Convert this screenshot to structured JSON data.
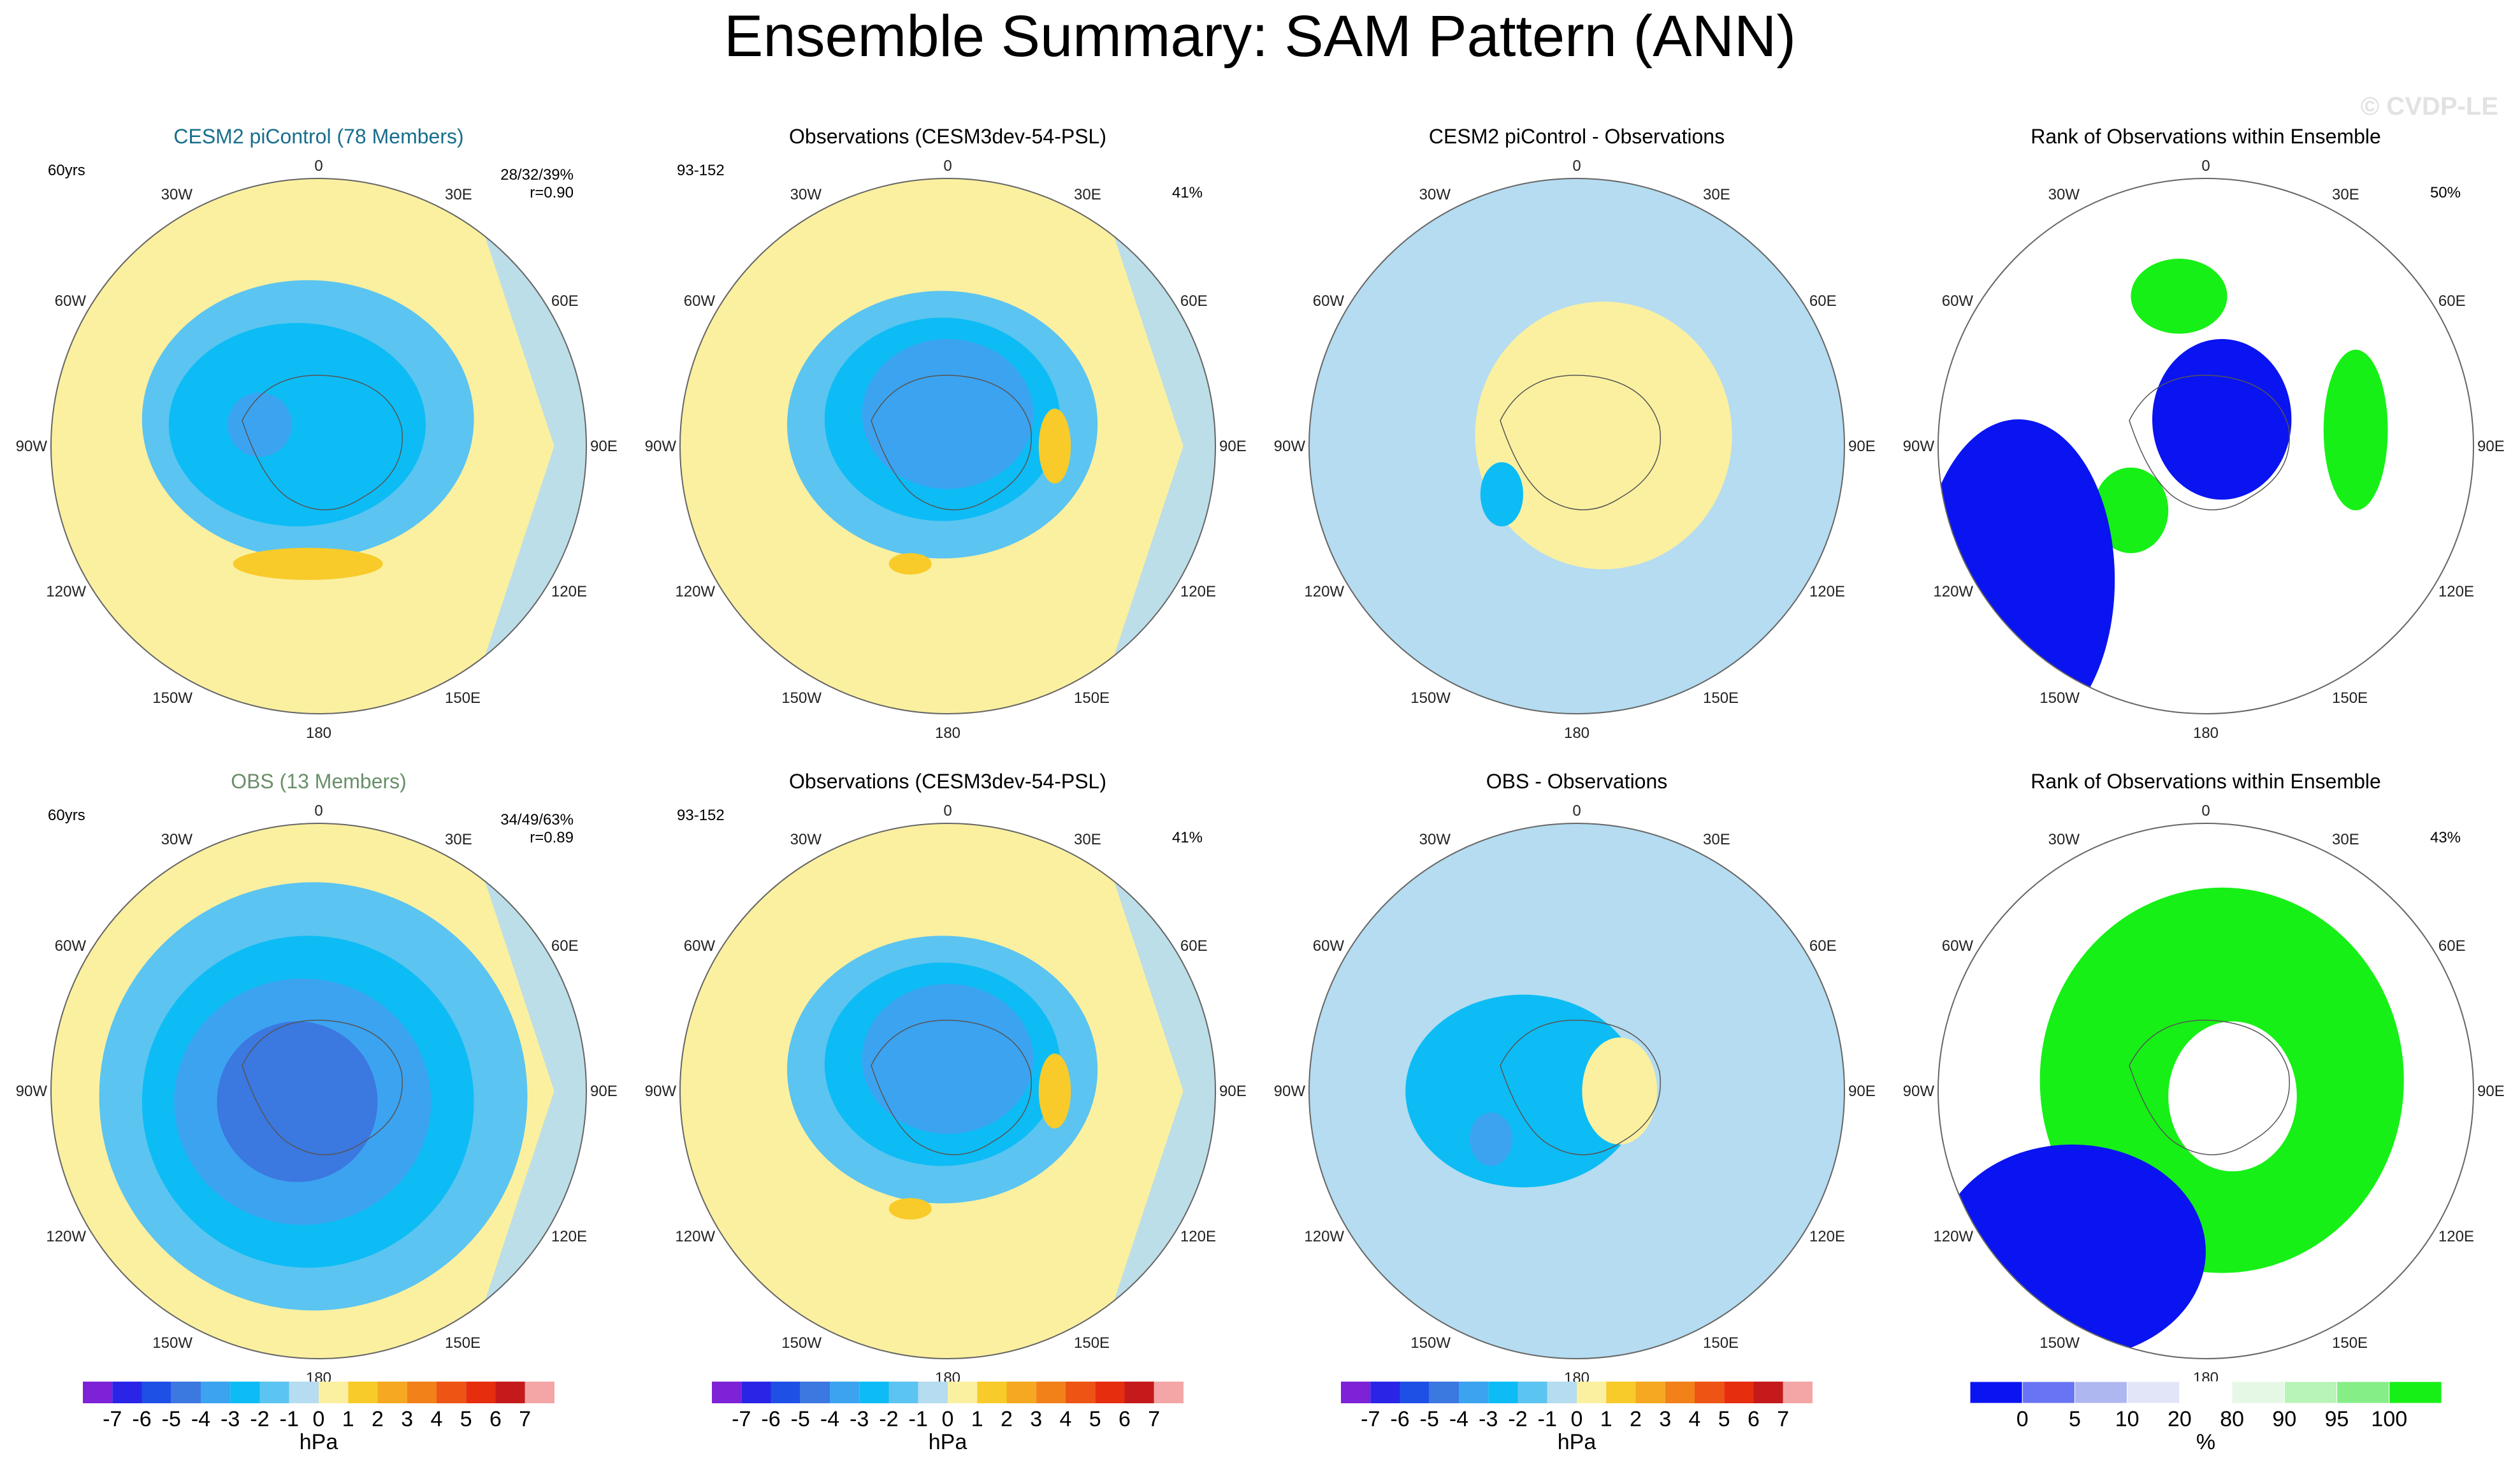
{
  "figure": {
    "title": "Ensemble Summary: SAM Pattern (ANN)",
    "watermark": "© CVDP-LE",
    "colors": {
      "neg": [
        "#7e22d8",
        "#2a25e6",
        "#1f50e6",
        "#3b78e0",
        "#3ca3f0",
        "#0dbcf5",
        "#5cc4f0",
        "#b5dcf0"
      ],
      "pos": [
        "#fbf0a0",
        "#f8cb2a",
        "#f5a821",
        "#f2811a",
        "#ee5414",
        "#e62e0e",
        "#c51a1c",
        "#f4a6a6"
      ],
      "rank": [
        "#0a14f0",
        "#6874f4",
        "#afb7f0",
        "#e2e5f8",
        "#ffffff",
        "#e5f8e5",
        "#b8f3b8",
        "#86ee86",
        "#16f016"
      ],
      "cesm_label": "#186e8c",
      "obs_label": "#6a8f6a"
    }
  },
  "chart_data": [
    {
      "type": "polar-contour-map",
      "title": "CESM2 piControl (78 Members)",
      "title_color": "#186e8c",
      "left_text": "60yrs",
      "right_text": "28/32/39%",
      "right_text2": "r=0.90",
      "lon_labels": [
        "0",
        "30E",
        "60E",
        "90E",
        "120E",
        "150E",
        "180",
        "150W",
        "120W",
        "90W",
        "60W",
        "30W"
      ],
      "regions": [
        {
          "level": -1,
          "center": [
            -2,
            5
          ],
          "extent": [
            31,
            26
          ],
          "note": "polar low ring"
        },
        {
          "level": -2,
          "center": [
            -4,
            4
          ],
          "extent": [
            24,
            19
          ]
        },
        {
          "level": -3,
          "center": [
            -11,
            4
          ],
          "extent": [
            6,
            6
          ]
        },
        {
          "level": 1,
          "center": [
            -2,
            -22
          ],
          "extent": [
            14,
            3
          ]
        }
      ]
    },
    {
      "type": "polar-contour-map",
      "title": "Observations (CESM3dev-54-PSL)",
      "left_text": "93-152",
      "right_text": "41%",
      "lon_labels": [
        "0",
        "30E",
        "60E",
        "90E",
        "120E",
        "150E",
        "180",
        "150W",
        "120W",
        "90W",
        "60W",
        "30W"
      ],
      "regions": [
        {
          "level": -1,
          "center": [
            -1,
            4
          ],
          "extent": [
            29,
            25
          ]
        },
        {
          "level": -2,
          "center": [
            -1,
            5
          ],
          "extent": [
            22,
            19
          ]
        },
        {
          "level": -3,
          "center": [
            0,
            6
          ],
          "extent": [
            16,
            14
          ]
        },
        {
          "level": 1,
          "center": [
            20,
            0
          ],
          "extent": [
            3,
            7
          ]
        },
        {
          "level": 1,
          "center": [
            -7,
            -22
          ],
          "extent": [
            4,
            2
          ]
        }
      ]
    },
    {
      "type": "polar-contour-map",
      "title": "CESM2 piControl - Observations",
      "left_text": "",
      "right_text": "",
      "lon_labels": [
        "0",
        "30E",
        "60E",
        "90E",
        "120E",
        "150E",
        "180",
        "150W",
        "120W",
        "90W",
        "60W",
        "30W"
      ],
      "regions": [
        {
          "level": -1,
          "center": [
            0,
            0
          ],
          "extent": [
            100,
            100
          ],
          "note": "broad negative"
        },
        {
          "level": 0,
          "center": [
            5,
            2
          ],
          "extent": [
            24,
            25
          ]
        },
        {
          "level": -2,
          "center": [
            -14,
            -9
          ],
          "extent": [
            4,
            6
          ]
        }
      ]
    },
    {
      "type": "polar-rank-map",
      "title": "Rank of Observations within Ensemble",
      "left_text": "",
      "right_text": "50%",
      "lon_labels": [
        "0",
        "30E",
        "60E",
        "90E",
        "120E",
        "150E",
        "180",
        "150W",
        "120W",
        "90W",
        "60W",
        "30W"
      ],
      "regions": [
        {
          "rank": 100,
          "center": [
            -5,
            28
          ],
          "extent": [
            9,
            7
          ]
        },
        {
          "rank": 100,
          "center": [
            28,
            3
          ],
          "extent": [
            6,
            15
          ]
        },
        {
          "rank": 100,
          "center": [
            -14,
            -12
          ],
          "extent": [
            7,
            8
          ]
        },
        {
          "rank": 0,
          "center": [
            3,
            5
          ],
          "extent": [
            13,
            15
          ]
        },
        {
          "rank": 0,
          "center": [
            -35,
            -25
          ],
          "extent": [
            18,
            30
          ]
        }
      ]
    },
    {
      "type": "polar-contour-map",
      "title": "OBS (13 Members)",
      "title_color": "#6a8f6a",
      "left_text": "60yrs",
      "right_text": "34/49/63%",
      "right_text2": "r=0.89",
      "lon_labels": [
        "0",
        "30E",
        "60E",
        "90E",
        "120E",
        "150E",
        "180",
        "150W",
        "120W",
        "90W",
        "60W",
        "30W"
      ],
      "regions": [
        {
          "level": -1,
          "center": [
            -1,
            -1
          ],
          "extent": [
            40,
            40
          ]
        },
        {
          "level": -2,
          "center": [
            -2,
            -2
          ],
          "extent": [
            31,
            31
          ]
        },
        {
          "level": -3,
          "center": [
            -3,
            -2
          ],
          "extent": [
            24,
            23
          ]
        },
        {
          "level": -4,
          "center": [
            -4,
            -2
          ],
          "extent": [
            15,
            15
          ]
        }
      ]
    },
    {
      "type": "polar-contour-map",
      "title": "Observations (CESM3dev-54-PSL)",
      "left_text": "93-152",
      "right_text": "41%",
      "lon_labels": [
        "0",
        "30E",
        "60E",
        "90E",
        "120E",
        "150E",
        "180",
        "150W",
        "120W",
        "90W",
        "60W",
        "30W"
      ],
      "regions": [
        {
          "level": -1,
          "center": [
            -1,
            4
          ],
          "extent": [
            29,
            25
          ]
        },
        {
          "level": -2,
          "center": [
            -1,
            5
          ],
          "extent": [
            22,
            19
          ]
        },
        {
          "level": -3,
          "center": [
            0,
            6
          ],
          "extent": [
            16,
            14
          ]
        },
        {
          "level": 1,
          "center": [
            20,
            0
          ],
          "extent": [
            3,
            7
          ]
        },
        {
          "level": 1,
          "center": [
            -7,
            -22
          ],
          "extent": [
            4,
            2
          ]
        }
      ]
    },
    {
      "type": "polar-contour-map",
      "title": "OBS - Observations",
      "left_text": "",
      "right_text": "",
      "lon_labels": [
        "0",
        "30E",
        "60E",
        "90E",
        "120E",
        "150E",
        "180",
        "150W",
        "120W",
        "90W",
        "60W",
        "30W"
      ],
      "regions": [
        {
          "level": -1,
          "center": [
            0,
            0
          ],
          "extent": [
            100,
            100
          ],
          "note": "broad negative"
        },
        {
          "level": -2,
          "center": [
            -10,
            0
          ],
          "extent": [
            22,
            18
          ]
        },
        {
          "level": -3,
          "center": [
            -16,
            -9
          ],
          "extent": [
            4,
            5
          ]
        },
        {
          "level": 0,
          "center": [
            8,
            0
          ],
          "extent": [
            7,
            10
          ]
        }
      ]
    },
    {
      "type": "polar-rank-map",
      "title": "Rank of Observations within Ensemble",
      "left_text": "",
      "right_text": "43%",
      "lon_labels": [
        "0",
        "30E",
        "60E",
        "90E",
        "120E",
        "150E",
        "180",
        "150W",
        "120W",
        "90W",
        "60W",
        "30W"
      ],
      "regions": [
        {
          "rank": 100,
          "center": [
            3,
            2
          ],
          "extent": [
            34,
            36
          ]
        },
        {
          "rank": 50,
          "center": [
            5,
            -1
          ],
          "extent": [
            12,
            14
          ]
        },
        {
          "rank": 0,
          "center": [
            -25,
            -30
          ],
          "extent": [
            25,
            20
          ]
        }
      ]
    }
  ],
  "colorbars": [
    {
      "labels": [
        "-7",
        "-6",
        "-5",
        "-4",
        "-3",
        "-2",
        "-1",
        "0",
        "1",
        "2",
        "3",
        "4",
        "5",
        "6",
        "7"
      ],
      "unit": "hPa"
    },
    {
      "labels": [
        "-7",
        "-6",
        "-5",
        "-4",
        "-3",
        "-2",
        "-1",
        "0",
        "1",
        "2",
        "3",
        "4",
        "5",
        "6",
        "7"
      ],
      "unit": "hPa"
    },
    {
      "labels": [
        "-7",
        "-6",
        "-5",
        "-4",
        "-3",
        "-2",
        "-1",
        "0",
        "1",
        "2",
        "3",
        "4",
        "5",
        "6",
        "7"
      ],
      "unit": "hPa"
    },
    {
      "labels": [
        "0",
        "5",
        "10",
        "20",
        "80",
        "90",
        "95",
        "100"
      ],
      "unit": "%"
    }
  ]
}
